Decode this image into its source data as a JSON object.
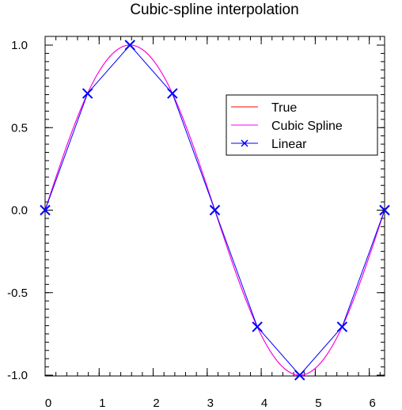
{
  "chart_data": {
    "type": "line",
    "title": "Cubic-spline interpolation",
    "xlabel": "",
    "ylabel": "",
    "xlim": [
      0,
      6.2832
    ],
    "ylim": [
      -1.0,
      1.0
    ],
    "x_ticks": [
      "0",
      "1",
      "2",
      "3",
      "4",
      "5",
      "6"
    ],
    "y_ticks": [
      "1.0",
      "0.5",
      "0.0",
      "-0.5",
      "-1.0"
    ],
    "grid": false,
    "legend_position": "upper-right",
    "series": [
      {
        "name": "True",
        "color": "#ff0000",
        "function": "sin",
        "x_range": [
          0,
          6.2832
        ]
      },
      {
        "name": "Cubic Spline",
        "color": "#ff00ff",
        "function": "cubic-spline through knots",
        "x_range": [
          0,
          6.2832
        ]
      },
      {
        "name": "Linear",
        "color": "#0000ff",
        "marker": "x",
        "x": [
          0,
          0.7854,
          1.5708,
          2.3562,
          3.1416,
          3.927,
          4.7124,
          5.4978,
          6.2832
        ],
        "y": [
          0,
          0.7071,
          1.0,
          0.7071,
          0,
          -0.7071,
          -1.0,
          -0.7071,
          0
        ]
      }
    ]
  }
}
